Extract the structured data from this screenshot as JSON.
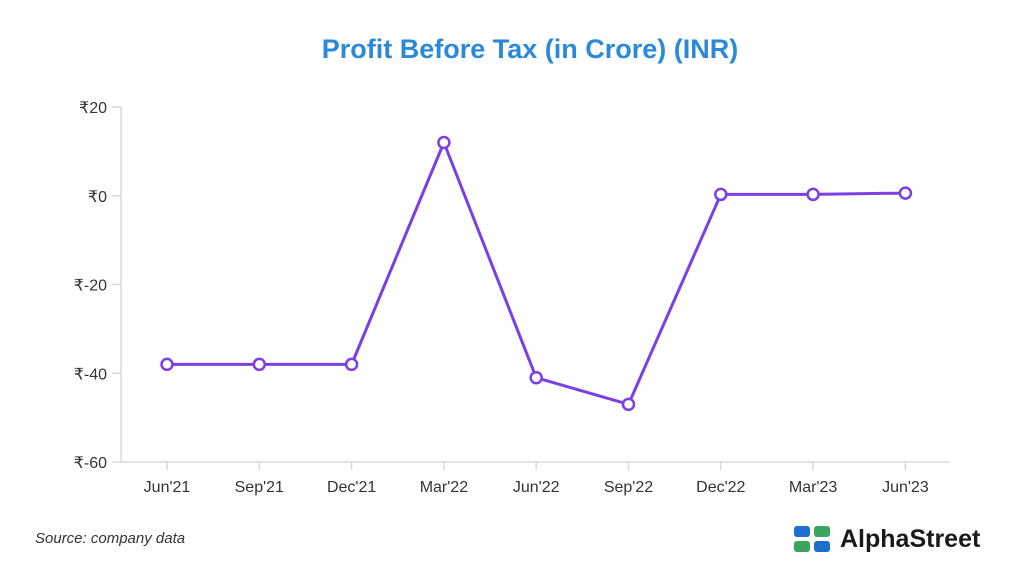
{
  "title": "Profit Before Tax (in Crore) (INR)",
  "source": "Source: company data",
  "brand": {
    "name": "AlphaStreet",
    "icon": "alphastreet-logo-icon"
  },
  "colors": {
    "title": "#2a8ad9",
    "line": "#7b3fe4",
    "axis": "#d9d9d9",
    "text": "#333333",
    "logo_blue": "#1f6fd1",
    "logo_green": "#3aa55c"
  },
  "chart_data": {
    "type": "line",
    "title": "Profit Before Tax (in Crore) (INR)",
    "categories": [
      "Jun'21",
      "Sep'21",
      "Dec'21",
      "Mar'22",
      "Jun'22",
      "Sep'22",
      "Dec'22",
      "Mar'23",
      "Jun'23"
    ],
    "series": [
      {
        "values": [
          -38,
          -38,
          -38,
          12,
          -41,
          -47,
          0.3,
          0.3,
          0.6
        ]
      }
    ],
    "y_ticks": [
      20,
      0,
      -20,
      -40,
      -60
    ],
    "y_tick_labels": [
      "₹20",
      "₹0",
      "₹-20",
      "₹-40",
      "₹-60"
    ],
    "ylim": [
      -60,
      20
    ],
    "xlabel": "",
    "ylabel": "",
    "grid": false,
    "markers": "hollow-circle"
  }
}
